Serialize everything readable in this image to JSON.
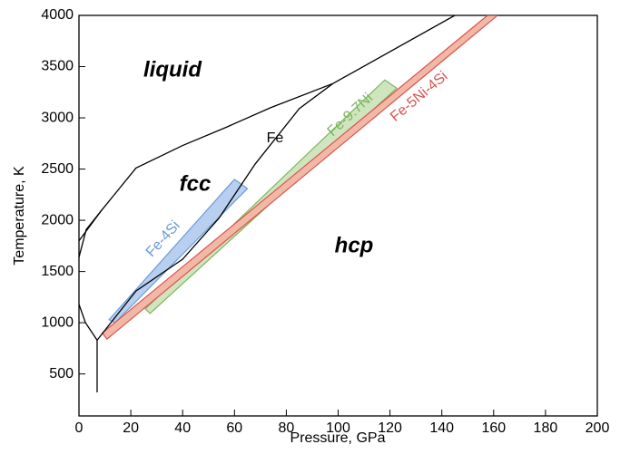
{
  "chart_data": {
    "type": "line",
    "xlabel": "Pressure, GPa",
    "ylabel": "Temperature, K",
    "xlim": [
      0,
      200
    ],
    "xticks": [
      0,
      20,
      40,
      60,
      80,
      100,
      120,
      140,
      160,
      180,
      200
    ],
    "ylim": [
      90,
      4000
    ],
    "yticks": [
      500,
      1000,
      1500,
      2000,
      2500,
      3000,
      3500,
      4000
    ],
    "annotations": [
      "liquid",
      "fcc",
      "hcp",
      "Fe"
    ],
    "series": [
      {
        "kind": "line",
        "color": "#000000",
        "x": [
          0,
          8.8,
          22,
          40,
          57,
          74,
          98,
          145
        ],
        "values": [
          1800,
          2100,
          2510,
          2730,
          2910,
          3100,
          3335,
          4000
        ]
      },
      {
        "kind": "line",
        "color": "#000000",
        "x": [
          0,
          2.8,
          8.8
        ],
        "values": [
          1640,
          1910,
          2100
        ]
      },
      {
        "kind": "line",
        "color": "#000000",
        "x": [
          0,
          2.5,
          7
        ],
        "values": [
          1180,
          1000,
          830
        ]
      },
      {
        "kind": "line",
        "color": "#000000",
        "x": [
          7,
          7
        ],
        "values": [
          830,
          320
        ]
      },
      {
        "kind": "line",
        "color": "#000000",
        "x": [
          7,
          22,
          40,
          54,
          68,
          85,
          98
        ],
        "values": [
          830,
          1310,
          1620,
          2020,
          2550,
          3090,
          3335
        ]
      },
      {
        "kind": "band",
        "name": "Fe-4Si",
        "color": "#6b9bd8",
        "fill": "#b8cff0",
        "x": [
          11.6,
          60,
          65,
          13.9
        ],
        "values": [
          1030,
          2400,
          2310,
          1000
        ]
      },
      {
        "kind": "band",
        "name": "Fe-9.7Ni",
        "color": "#7ab55c",
        "fill": "#cfe5bf",
        "x": [
          25.6,
          118,
          122.6,
          27.4
        ],
        "values": [
          1135,
          3370,
          3290,
          1090
        ]
      },
      {
        "kind": "band",
        "name": "Fe-5Ni-4Si",
        "color": "#d9534f",
        "fill": "#f2b8a6",
        "x": [
          9,
          157.6,
          161.5,
          10.8
        ],
        "values": [
          900,
          4000,
          4000,
          840
        ]
      }
    ]
  }
}
